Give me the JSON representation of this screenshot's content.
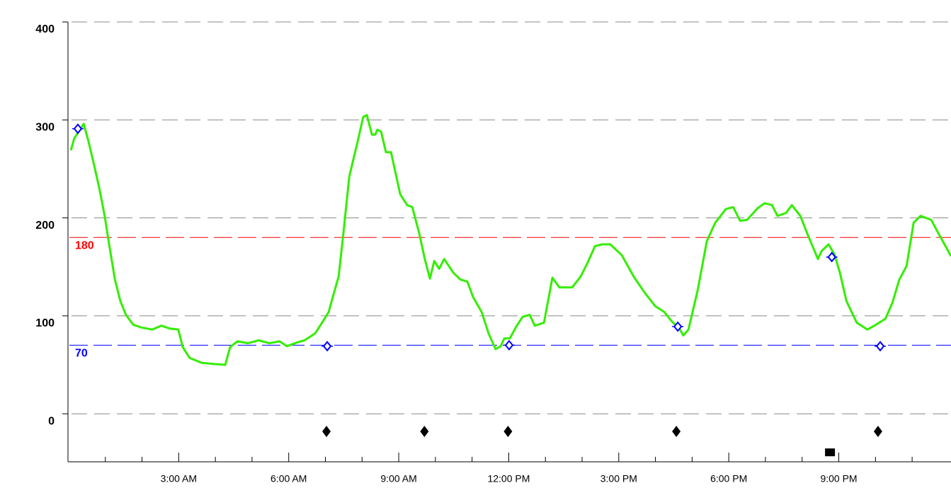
{
  "chart_data": {
    "type": "line",
    "xlim": [
      0,
      24.06
    ],
    "ylim": [
      -49,
      400
    ],
    "yticks": [
      0,
      100,
      200,
      300,
      400
    ],
    "xticks": [
      {
        "value": 3,
        "label": "3:00 AM"
      },
      {
        "value": 6,
        "label": "6:00 AM"
      },
      {
        "value": 9,
        "label": "9:00 AM"
      },
      {
        "value": 12,
        "label": "12:00 PM"
      },
      {
        "value": 15,
        "label": "3:00 PM"
      },
      {
        "value": 18,
        "label": "6:00 PM"
      },
      {
        "value": 21,
        "label": "9:00 PM"
      }
    ],
    "xminor": [
      1,
      2,
      4,
      5,
      7,
      8,
      10,
      11,
      13,
      14,
      16,
      17,
      19,
      20,
      22,
      23
    ],
    "grid": true,
    "thresholds": [
      {
        "value": 180,
        "color": "#ff0000"
      },
      {
        "value": 70,
        "color": "#0000ff"
      }
    ],
    "series": [
      {
        "style": "line",
        "color": "#33ee00",
        "x": [
          0.06,
          0.15,
          0.29,
          0.41,
          0.54,
          0.68,
          0.83,
          0.98,
          1.12,
          1.26,
          1.41,
          1.56,
          1.76,
          1.99,
          2.28,
          2.53,
          2.76,
          2.99,
          3.11,
          3.3,
          3.63,
          3.92,
          4.27,
          4.4,
          4.6,
          4.89,
          5.18,
          5.47,
          5.75,
          5.95,
          6.24,
          6.43,
          6.72,
          6.91,
          7.09,
          7.2,
          7.36,
          7.49,
          7.65,
          7.88,
          8.03,
          8.13,
          8.27,
          8.36,
          8.42,
          8.52,
          8.65,
          8.79,
          8.86,
          9.04,
          9.23,
          9.37,
          9.56,
          9.71,
          9.85,
          9.97,
          10.1,
          10.24,
          10.49,
          10.68,
          10.87,
          11.03,
          11.26,
          11.45,
          11.64,
          11.78,
          11.88,
          12.03,
          12.22,
          12.38,
          12.57,
          12.71,
          12.96,
          13.19,
          13.38,
          13.73,
          13.96,
          14.16,
          14.35,
          14.54,
          14.77,
          15.08,
          15.41,
          15.7,
          15.99,
          16.24,
          16.43,
          16.67,
          16.76,
          16.9,
          17.15,
          17.4,
          17.63,
          17.92,
          18.12,
          18.31,
          18.5,
          18.79,
          18.98,
          19.18,
          19.33,
          19.56,
          19.72,
          19.95,
          20.14,
          20.43,
          20.53,
          20.72,
          20.88,
          21.03,
          21.21,
          21.49,
          21.78,
          21.97,
          22.27,
          22.46,
          22.65,
          22.85,
          23.04,
          23.23,
          23.52,
          23.72,
          24.06
        ],
        "values": [
          269,
          281,
          289,
          296,
          278,
          256,
          231,
          202,
          169,
          137,
          115,
          101,
          91,
          88,
          86,
          90,
          87,
          86,
          68,
          57,
          52,
          51,
          50,
          68,
          74,
          72,
          75,
          72,
          74,
          69,
          73,
          75,
          82,
          93,
          104,
          119,
          140,
          184,
          242,
          278,
          303,
          305,
          285,
          285,
          290,
          288,
          267,
          267,
          255,
          224,
          213,
          211,
          184,
          158,
          138,
          156,
          148,
          158,
          144,
          137,
          135,
          119,
          104,
          82,
          66,
          69,
          77,
          77,
          90,
          99,
          101,
          90,
          93,
          139,
          129,
          129,
          140,
          155,
          171,
          173,
          173,
          162,
          140,
          124,
          110,
          104,
          95,
          86,
          80,
          86,
          126,
          176,
          195,
          209,
          211,
          197,
          198,
          210,
          215,
          213,
          202,
          205,
          213,
          202,
          184,
          158,
          166,
          173,
          163,
          144,
          115,
          93,
          86,
          90,
          97,
          113,
          137,
          151,
          195,
          202,
          198,
          184,
          161
        ]
      },
      {
        "style": "markers",
        "marker": "reading",
        "color": "#0000ff",
        "x": [
          0.25,
          7.05,
          12.01,
          16.61,
          20.81,
          22.13
        ],
        "values": [
          291,
          69,
          70,
          89,
          160,
          69
        ]
      },
      {
        "style": "markers",
        "marker": "diamond",
        "color": "#000000",
        "x": [
          7.03,
          9.7,
          11.98,
          16.57,
          22.07
        ],
        "values": [
          -18,
          -18,
          -18,
          -18,
          -18
        ]
      },
      {
        "style": "markers",
        "marker": "square",
        "color": "#000000",
        "x": [
          20.76
        ],
        "values": [
          -39
        ]
      }
    ]
  }
}
